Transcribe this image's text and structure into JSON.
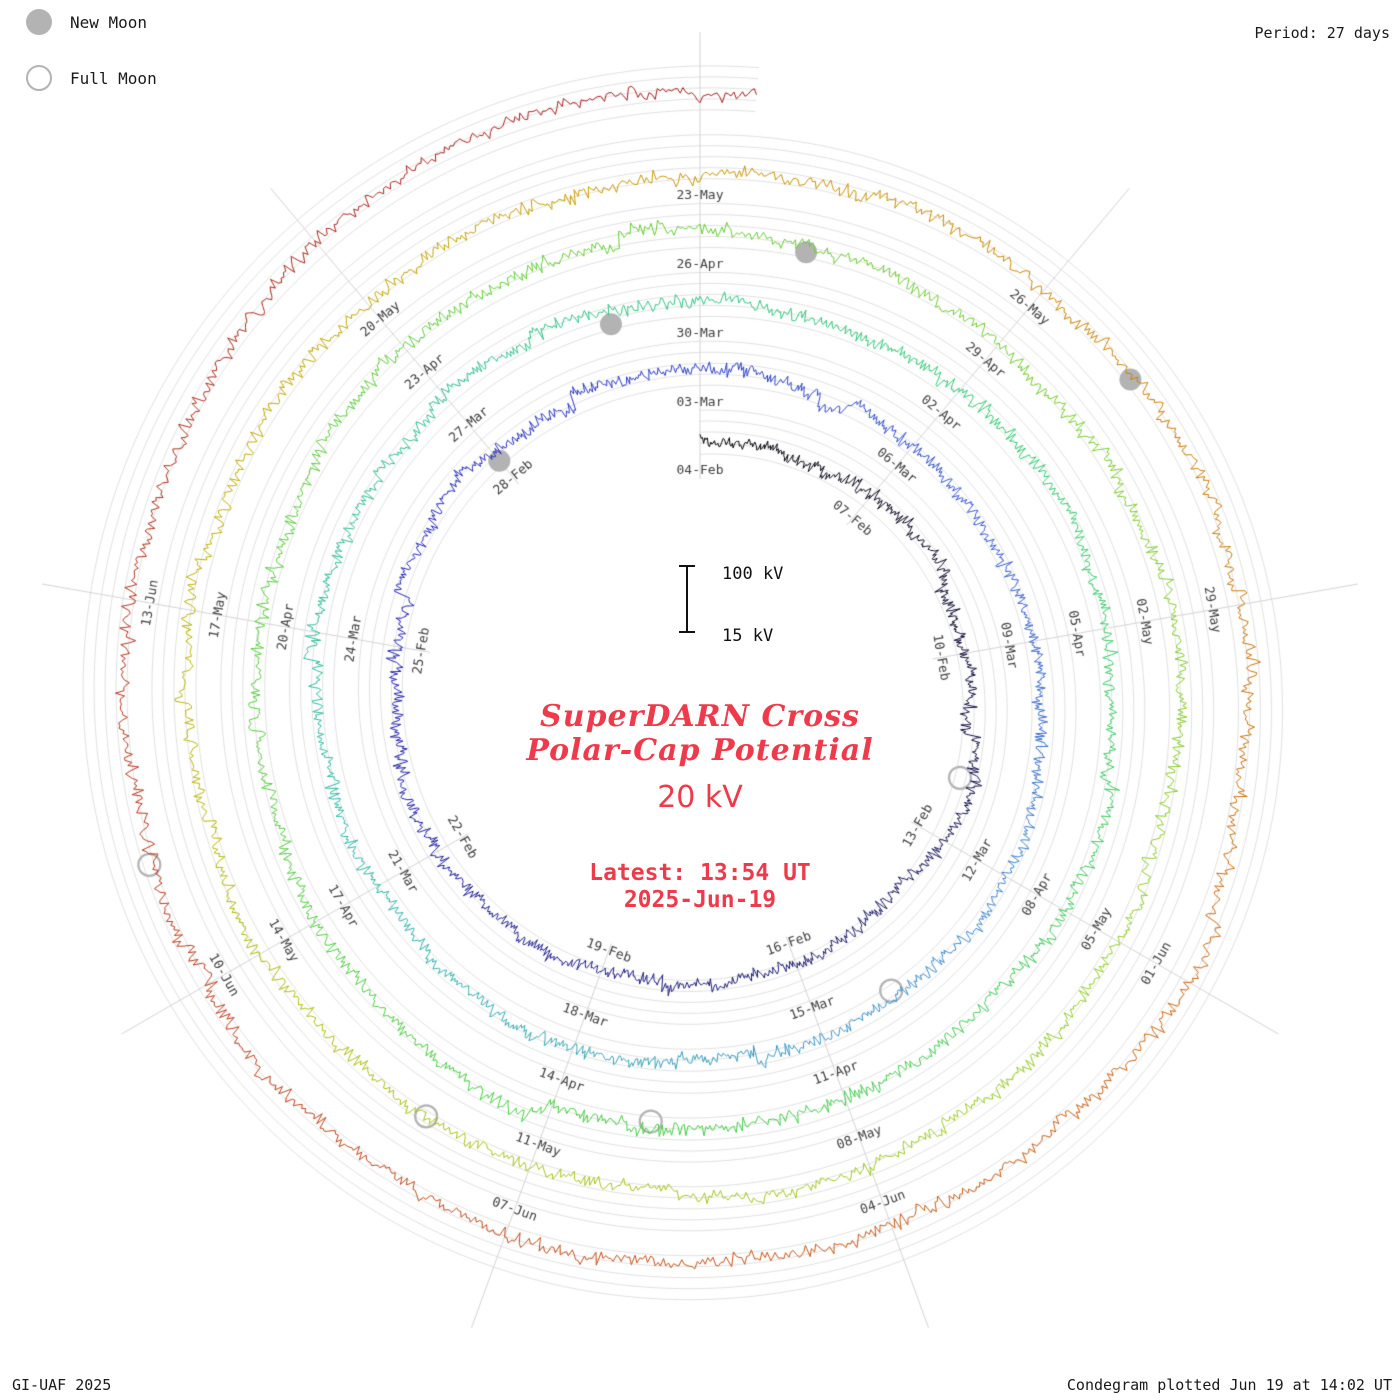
{
  "header": {
    "period_label": "Period: 27 days"
  },
  "legend": {
    "new_moon": "New Moon",
    "full_moon": "Full Moon"
  },
  "center": {
    "title_line1": "SuperDARN Cross",
    "title_line2": "Polar-Cap Potential",
    "current_value": "20 kV",
    "latest_line1": "Latest: 13:54 UT",
    "latest_line2": "2025-Jun-19",
    "scale_top": "100 kV",
    "scale_bottom": "15 kV"
  },
  "footer": {
    "left": "GI-UAF 2025",
    "right": "Condegram plotted Jun 19 at 14:02 UT"
  },
  "colors": {
    "accent_red": "#ee3a4a",
    "moon_gray": "#b3b3b3",
    "grid": "#d2d2d2",
    "radial": "#c8c8c8",
    "label_text": "#404040"
  },
  "chart_data": {
    "type": "spiral-condegram",
    "quantity": "SuperDARN Cross Polar-Cap Potential (kV)",
    "period_days": 27,
    "tick_interval_days": 3,
    "total_days": 135.4,
    "start_label": "04-Feb",
    "end_label": "2025-Jun-19",
    "latest_value_kv": 20,
    "latest_time": "13:54 UT",
    "scale": {
      "min_kv": 15,
      "max_kv": 100
    },
    "grid_kv": [
      20,
      40,
      60,
      80,
      100
    ],
    "date_labels": [
      {
        "d": 0,
        "label": "04-Feb"
      },
      {
        "d": 3,
        "label": "07-Feb"
      },
      {
        "d": 6,
        "label": "10-Feb"
      },
      {
        "d": 9,
        "label": "13-Feb"
      },
      {
        "d": 12,
        "label": "16-Feb"
      },
      {
        "d": 15,
        "label": "19-Feb"
      },
      {
        "d": 18,
        "label": "22-Feb"
      },
      {
        "d": 21,
        "label": "25-Feb"
      },
      {
        "d": 24,
        "label": "28-Feb"
      },
      {
        "d": 27,
        "label": "03-Mar"
      },
      {
        "d": 30,
        "label": "06-Mar"
      },
      {
        "d": 33,
        "label": "09-Mar"
      },
      {
        "d": 36,
        "label": "12-Mar"
      },
      {
        "d": 39,
        "label": "15-Mar"
      },
      {
        "d": 42,
        "label": "18-Mar"
      },
      {
        "d": 45,
        "label": "21-Mar"
      },
      {
        "d": 48,
        "label": "24-Mar"
      },
      {
        "d": 51,
        "label": "27-Mar"
      },
      {
        "d": 54,
        "label": "30-Mar"
      },
      {
        "d": 57,
        "label": "02-Apr"
      },
      {
        "d": 60,
        "label": "05-Apr"
      },
      {
        "d": 63,
        "label": "08-Apr"
      },
      {
        "d": 66,
        "label": "11-Apr"
      },
      {
        "d": 69,
        "label": "14-Apr"
      },
      {
        "d": 72,
        "label": "17-Apr"
      },
      {
        "d": 75,
        "label": "20-Apr"
      },
      {
        "d": 78,
        "label": "23-Apr"
      },
      {
        "d": 81,
        "label": "26-Apr"
      },
      {
        "d": 84,
        "label": "29-Apr"
      },
      {
        "d": 87,
        "label": "02-May"
      },
      {
        "d": 90,
        "label": "05-May"
      },
      {
        "d": 93,
        "label": "08-May"
      },
      {
        "d": 96,
        "label": "11-May"
      },
      {
        "d": 99,
        "label": "14-May"
      },
      {
        "d": 102,
        "label": "17-May"
      },
      {
        "d": 105,
        "label": "20-May"
      },
      {
        "d": 108,
        "label": "23-May"
      },
      {
        "d": 111,
        "label": "26-May"
      },
      {
        "d": 114,
        "label": "29-May"
      },
      {
        "d": 117,
        "label": "01-Jun"
      },
      {
        "d": 120,
        "label": "04-Jun"
      },
      {
        "d": 123,
        "label": "07-Jun"
      },
      {
        "d": 126,
        "label": "10-Jun"
      },
      {
        "d": 129,
        "label": "13-Jun"
      }
    ],
    "new_moons": [
      {
        "d": 24,
        "label": "28-Feb"
      },
      {
        "d": 53,
        "label": "29-Mar"
      },
      {
        "d": 82,
        "label": "27-Apr"
      },
      {
        "d": 112,
        "label": "27-May"
      }
    ],
    "full_moons": [
      {
        "d": 8,
        "label": "12-Feb"
      },
      {
        "d": 38,
        "label": "14-Mar"
      },
      {
        "d": 68,
        "label": "13-Apr"
      },
      {
        "d": 97,
        "label": "12-May"
      },
      {
        "d": 127,
        "label": "11-Jun"
      }
    ],
    "color_stops": [
      {
        "p": 0.0,
        "c": "#000000"
      },
      {
        "p": 0.08,
        "c": "#191966"
      },
      {
        "p": 0.16,
        "c": "#2222bb"
      },
      {
        "p": 0.23,
        "c": "#3355cc"
      },
      {
        "p": 0.28,
        "c": "#4090cc"
      },
      {
        "p": 0.33,
        "c": "#30b4a8"
      },
      {
        "p": 0.41,
        "c": "#2fc878"
      },
      {
        "p": 0.5,
        "c": "#44cc44"
      },
      {
        "p": 0.6,
        "c": "#66cc33"
      },
      {
        "p": 0.68,
        "c": "#99cc22"
      },
      {
        "p": 0.75,
        "c": "#bbb400"
      },
      {
        "p": 0.81,
        "c": "#cc8e00"
      },
      {
        "p": 0.87,
        "c": "#c86414"
      },
      {
        "p": 0.93,
        "c": "#bb3c1a"
      },
      {
        "p": 1.0,
        "c": "#a01c1c"
      }
    ]
  }
}
